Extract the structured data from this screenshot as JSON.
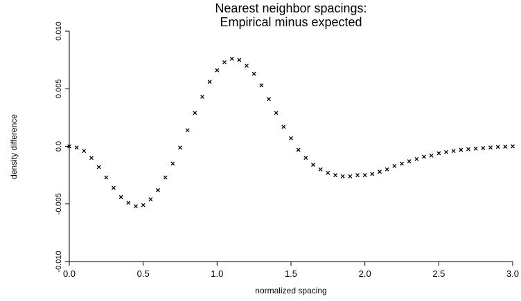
{
  "chart_data": {
    "type": "scatter",
    "title": "Nearest neighbor spacings:",
    "subtitle": "Empirical minus expected",
    "x_label": "normalized spacing",
    "y_label": "density difference",
    "color": "#000000",
    "x": [
      0,
      0.05,
      0.1,
      0.15,
      0.2,
      0.25,
      0.3,
      0.35,
      0.4,
      0.45,
      0.5,
      0.55,
      0.6,
      0.65,
      0.7,
      0.75,
      0.8,
      0.85,
      0.9,
      0.95,
      1.0,
      1.05,
      1.1,
      1.15,
      1.2,
      1.25,
      1.3,
      1.35,
      1.4,
      1.45,
      1.5,
      1.55,
      1.6,
      1.65,
      1.7,
      1.75,
      1.8,
      1.85,
      1.9,
      1.95,
      2.0,
      2.05,
      2.1,
      2.15,
      2.2,
      2.25,
      2.3,
      2.35,
      2.4,
      2.45,
      2.5,
      2.55,
      2.6,
      2.65,
      2.7,
      2.75,
      2.8,
      2.85,
      2.9,
      2.95,
      3.0
    ],
    "values": [
      0,
      -0.0001,
      -0.0004,
      -0.001,
      -0.0018,
      -0.0027,
      -0.0036,
      -0.0044,
      -0.0049,
      -0.0052,
      -0.0051,
      -0.0046,
      -0.0038,
      -0.0027,
      -0.0015,
      -0.0001,
      0.0014,
      0.0029,
      0.0043,
      0.0056,
      0.0066,
      0.0073,
      0.0076,
      0.0075,
      0.007,
      0.0063,
      0.0053,
      0.0041,
      0.0029,
      0.0017,
      0.0007,
      -0.0003,
      -0.001,
      -0.0016,
      -0.002,
      -0.0023,
      -0.0025,
      -0.0026,
      -0.0026,
      -0.0025,
      -0.0025,
      -0.0024,
      -0.0022,
      -0.002,
      -0.0017,
      -0.0015,
      -0.0013,
      -0.0011,
      -0.0009,
      -0.0008,
      -0.0006,
      -0.0005,
      -0.0004,
      -0.0003,
      -0.00025,
      -0.0002,
      -0.00015,
      -0.0001,
      -5e-05,
      -3e-05,
      0
    ],
    "xlim": [
      0,
      3
    ],
    "ylim": [
      -0.01,
      0.01
    ],
    "xticks": [
      {
        "value": 0,
        "label": "0.0"
      },
      0.5,
      {
        "value": 1,
        "label": "1.0"
      },
      1.5,
      {
        "value": 2,
        "label": "2.0"
      },
      2.5,
      {
        "value": 3,
        "label": "3.0"
      }
    ],
    "yticks": [
      {
        "value": -0.01,
        "label": "-0.010"
      },
      -0.005,
      {
        "value": 0,
        "label": "0.0"
      },
      0.005,
      {
        "value": 0.01,
        "label": "0.010"
      }
    ]
  }
}
